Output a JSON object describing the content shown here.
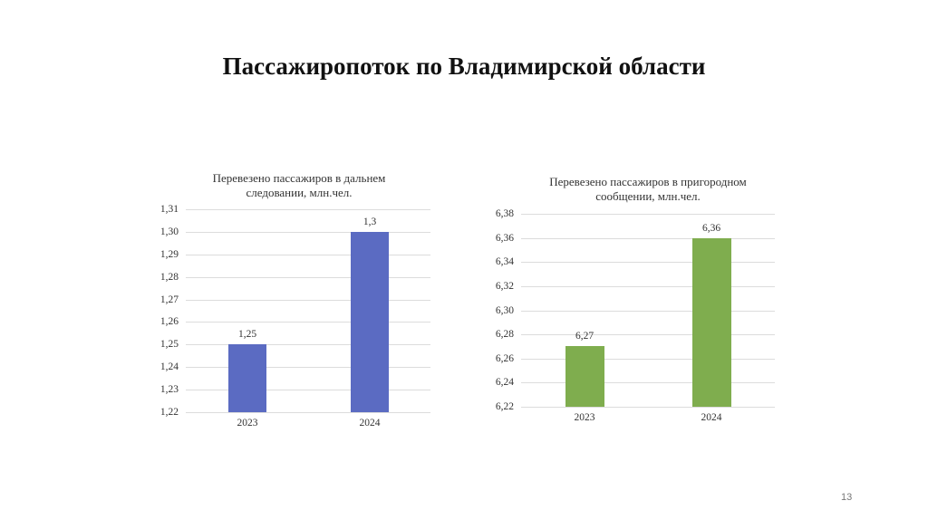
{
  "slide": {
    "title": "Пассажиропоток по Владимирской области",
    "page_number": "13"
  },
  "colors": {
    "chart1_bar": "#5B6BC2",
    "chart2_bar": "#7FAD4E",
    "gridline": "#DCDCDC"
  },
  "chart_data": [
    {
      "type": "bar",
      "title": "Перевезено пассажиров в дальнем следовании, млн.чел.",
      "title_lines": [
        "Перевезено пассажиров в дальнем",
        "следовании, млн.чел."
      ],
      "categories": [
        "2023",
        "2024"
      ],
      "values": [
        1.25,
        1.3
      ],
      "value_labels": [
        "1,25",
        "1,3"
      ],
      "ylim": [
        1.22,
        1.31
      ],
      "yticks": [
        "1,31",
        "1,30",
        "1,29",
        "1,28",
        "1,27",
        "1,26",
        "1,25",
        "1,24",
        "1,23",
        "1,22"
      ],
      "xlabel": "",
      "ylabel": "",
      "grid": true,
      "legend": "none",
      "color": "#5B6BC2"
    },
    {
      "type": "bar",
      "title": "Перевезено пассажиров в пригородном сообщении, млн.чел.",
      "title_lines": [
        "Перевезено пассажиров в пригородном",
        "сообщении, млн.чел."
      ],
      "categories": [
        "2023",
        "2024"
      ],
      "values": [
        6.27,
        6.36
      ],
      "value_labels": [
        "6,27",
        "6,36"
      ],
      "ylim": [
        6.22,
        6.38
      ],
      "yticks": [
        "6,38",
        "6,36",
        "6,34",
        "6,32",
        "6,30",
        "6,28",
        "6,26",
        "6,24",
        "6,22"
      ],
      "xlabel": "",
      "ylabel": "",
      "grid": true,
      "legend": "none",
      "color": "#7FAD4E"
    }
  ]
}
